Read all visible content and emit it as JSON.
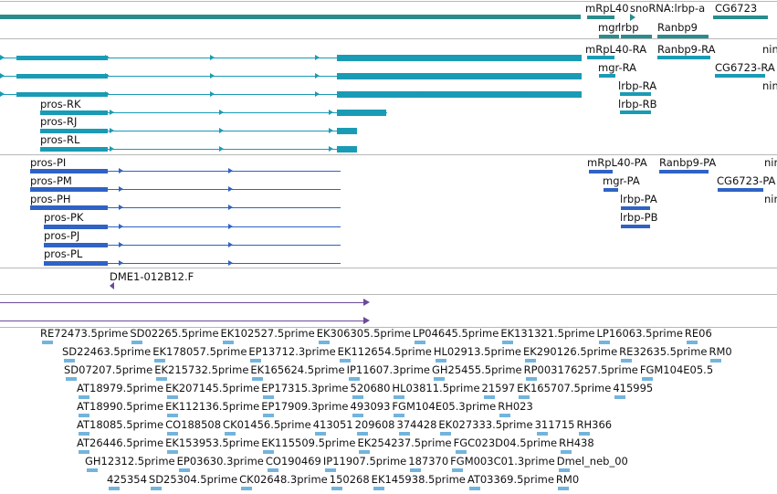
{
  "colors": {
    "gene": "#2a8c8c",
    "transcript": "#1a9bb5",
    "protein": "#2f62c4",
    "clone": "#6b4a9a",
    "est": "#73b4dd",
    "separator": "#b8b8b8"
  },
  "tracks": {
    "gene": {
      "labels": {
        "mrpl40": "mRpL40",
        "snorna": "snoRNA:lrbp-a",
        "cg6723": "CG6723",
        "mgr": "mgr",
        "lrbp": "lrbp",
        "ranbp9": "Ranbp9"
      }
    },
    "transcript": {
      "labels": {
        "mrpl40_ra": "mRpL40-RA",
        "ranbp9_ra": "Ranbp9-RA",
        "nin_r": "nin",
        "mgr_ra": "mgr-RA",
        "cg6723_ra": "CG6723-RA",
        "lrbp_ra": "lrbp-RA",
        "nin_r2": "nin",
        "lrbp_rb": "lrbp-RB",
        "pros_rk": "pros-RK",
        "pros_rj": "pros-RJ",
        "pros_rl": "pros-RL"
      }
    },
    "protein": {
      "labels": {
        "pros_pi": "pros-PI",
        "pros_pm": "pros-PM",
        "pros_ph": "pros-PH",
        "pros_pk": "pros-PK",
        "pros_pj": "pros-PJ",
        "pros_pl": "pros-PL",
        "mrpl40_pa": "mRpL40-PA",
        "ranbp9_pa": "Ranbp9-PA",
        "nin_p": "nin",
        "mgr_pa": "mgr-PA",
        "cg6723_pa": "CG6723-PA",
        "lrbp_pa": "lrbp-PA",
        "nin_p2": "nin",
        "lrbp_pb": "lrbp-PB"
      }
    },
    "clone": {
      "labels": {
        "dme1": "DME1-012B12.F"
      }
    },
    "est": {
      "rows": [
        [
          "RE72473.5prime",
          "SD02265.5prime",
          "EK102527.5prime",
          "EK306305.5prime",
          "LP04645.5prime",
          "EK131321.5prime",
          "LP16063.5prime",
          "RE06"
        ],
        [
          "SD22463.5prime",
          "EK178057.5prime",
          "EP13712.3prime",
          "EK112654.5prime",
          "HL02913.5prime",
          "EK290126.5prime",
          "RE32635.5prime",
          "RM0"
        ],
        [
          "SD07207.5prime",
          "EK215732.5prime",
          "EK165624.5prime",
          "IP11607.3prime",
          "GH25455.5prime",
          "RP003176257.5prime",
          "FGM104E05.5"
        ],
        [
          "AT18979.5prime",
          "EK207145.5prime",
          "EP17315.3prime",
          "520680",
          "HL03811.5prime",
          "21597",
          "EK165707.5prime",
          "415995"
        ],
        [
          "AT18990.5prime",
          "EK112136.5prime",
          "EP17909.3prime",
          "493093",
          "FGM104E05.3prime",
          "RH023"
        ],
        [
          "AT18085.5prime",
          "CO188508",
          "CK01456.5prime",
          "413051",
          "209608",
          "374428",
          "EK027333.5prime",
          "311715",
          "RH366"
        ],
        [
          "AT26446.5prime",
          "EK153953.5prime",
          "EK115509.5prime",
          "EK254237.5prime",
          "FGC023D04.5prime",
          "RH438"
        ],
        [
          "GH12312.5prime",
          "EP03630.3prime",
          "CO190469",
          "IP11907.5prime",
          "187370",
          "FGM003C01.3prime",
          "Dmel_neb_00"
        ],
        [
          "425354",
          "SD25304.5prime",
          "CK02648.3prime",
          "150268",
          "EK145938.5prime",
          "AT03369.5prime",
          "RM0"
        ]
      ]
    }
  }
}
